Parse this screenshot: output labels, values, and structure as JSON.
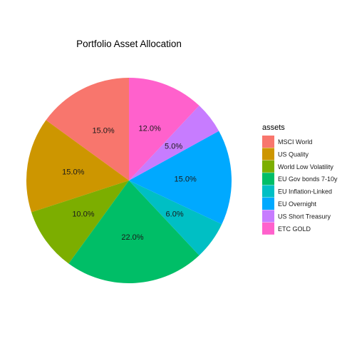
{
  "chart_data": {
    "type": "pie",
    "title": "Portfolio Asset Allocation",
    "legend": {
      "title": "assets",
      "placement": "right"
    },
    "slices": [
      {
        "name": "MSCI World",
        "value": 15.0,
        "label": "15.0%",
        "color": "#F8766D"
      },
      {
        "name": "US Quality",
        "value": 15.0,
        "label": "15.0%",
        "color": "#CD9600"
      },
      {
        "name": "World Low Volatility",
        "value": 10.0,
        "label": "10.0%",
        "color": "#7CAE00"
      },
      {
        "name": "EU Gov bonds 7-10y",
        "value": 22.0,
        "label": "22.0%",
        "color": "#00BE67"
      },
      {
        "name": "EU Inflation-Linked",
        "value": 6.0,
        "label": "6.0%",
        "color": "#00BFC4"
      },
      {
        "name": "EU Overnight",
        "value": 15.0,
        "label": "15.0%",
        "color": "#00A9FF"
      },
      {
        "name": "US Short Treasury",
        "value": 5.0,
        "label": "5.0%",
        "color": "#C77CFF"
      },
      {
        "name": "ETC GOLD",
        "value": 12.0,
        "label": "12.0%",
        "color": "#FF61CC"
      }
    ],
    "direction": "counterclockwise",
    "start": "top"
  }
}
